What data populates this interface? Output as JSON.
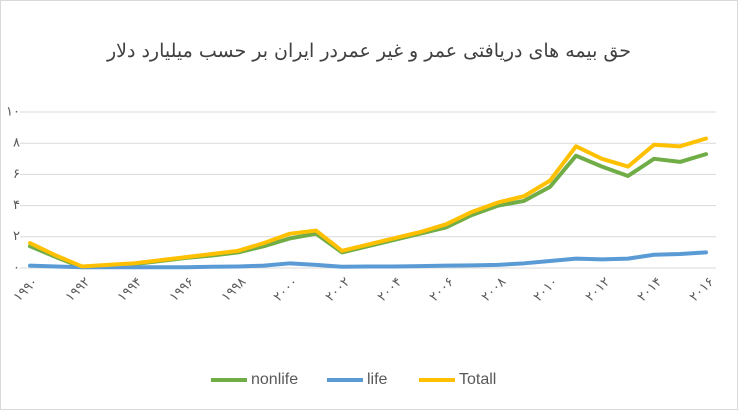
{
  "chart_data": {
    "type": "line",
    "title": "حق بیمه های دریافتی عمر و غیر عمردر ایران بر حسب میلیارد دلار",
    "categories": [
      "۱۹۹۰",
      null,
      "۱۹۹۲",
      null,
      "۱۹۹۴",
      null,
      "۱۹۹۶",
      null,
      "۱۹۹۸",
      null,
      "۲۰۰۰",
      null,
      "۲۰۰۲",
      null,
      "۲۰۰۴",
      null,
      "۲۰۰۶",
      null,
      "۲۰۰۸",
      null,
      "۲۰۱۰",
      null,
      "۲۰۱۲",
      null,
      "۲۰۱۴",
      null,
      "۲۰۱۶"
    ],
    "series": [
      {
        "name": "nonlife",
        "color": "#70ad47",
        "values": [
          1.4,
          0.7,
          0.05,
          0.15,
          0.25,
          0.45,
          0.65,
          0.8,
          1.0,
          1.4,
          1.9,
          2.2,
          1.0,
          1.4,
          1.8,
          2.2,
          2.6,
          3.4,
          4.0,
          4.3,
          5.2,
          7.2,
          6.5,
          5.9,
          7.0,
          6.8,
          7.3
        ]
      },
      {
        "name": "life",
        "color": "#5b9bd5",
        "values": [
          0.15,
          0.1,
          0.05,
          0.05,
          0.05,
          0.05,
          0.05,
          0.08,
          0.1,
          0.15,
          0.3,
          0.2,
          0.08,
          0.1,
          0.1,
          0.12,
          0.15,
          0.17,
          0.2,
          0.3,
          0.45,
          0.6,
          0.55,
          0.6,
          0.85,
          0.9,
          1.0
        ]
      },
      {
        "name": "Totall",
        "color": "#ffc000",
        "values": [
          1.6,
          0.8,
          0.1,
          0.2,
          0.3,
          0.5,
          0.7,
          0.9,
          1.1,
          1.6,
          2.2,
          2.4,
          1.1,
          1.5,
          1.9,
          2.3,
          2.8,
          3.6,
          4.2,
          4.6,
          5.6,
          7.8,
          7.0,
          6.5,
          7.9,
          7.8,
          8.3
        ]
      }
    ],
    "ylim": [
      0,
      10
    ],
    "yticks": [
      {
        "value": 0,
        "label": "۰"
      },
      {
        "value": 2,
        "label": "۲"
      },
      {
        "value": 4,
        "label": "۴"
      },
      {
        "value": 6,
        "label": "۶"
      },
      {
        "value": 8,
        "label": "۸"
      },
      {
        "value": 10,
        "label": "۱۰"
      }
    ],
    "grid": true,
    "legend": "bottom"
  }
}
